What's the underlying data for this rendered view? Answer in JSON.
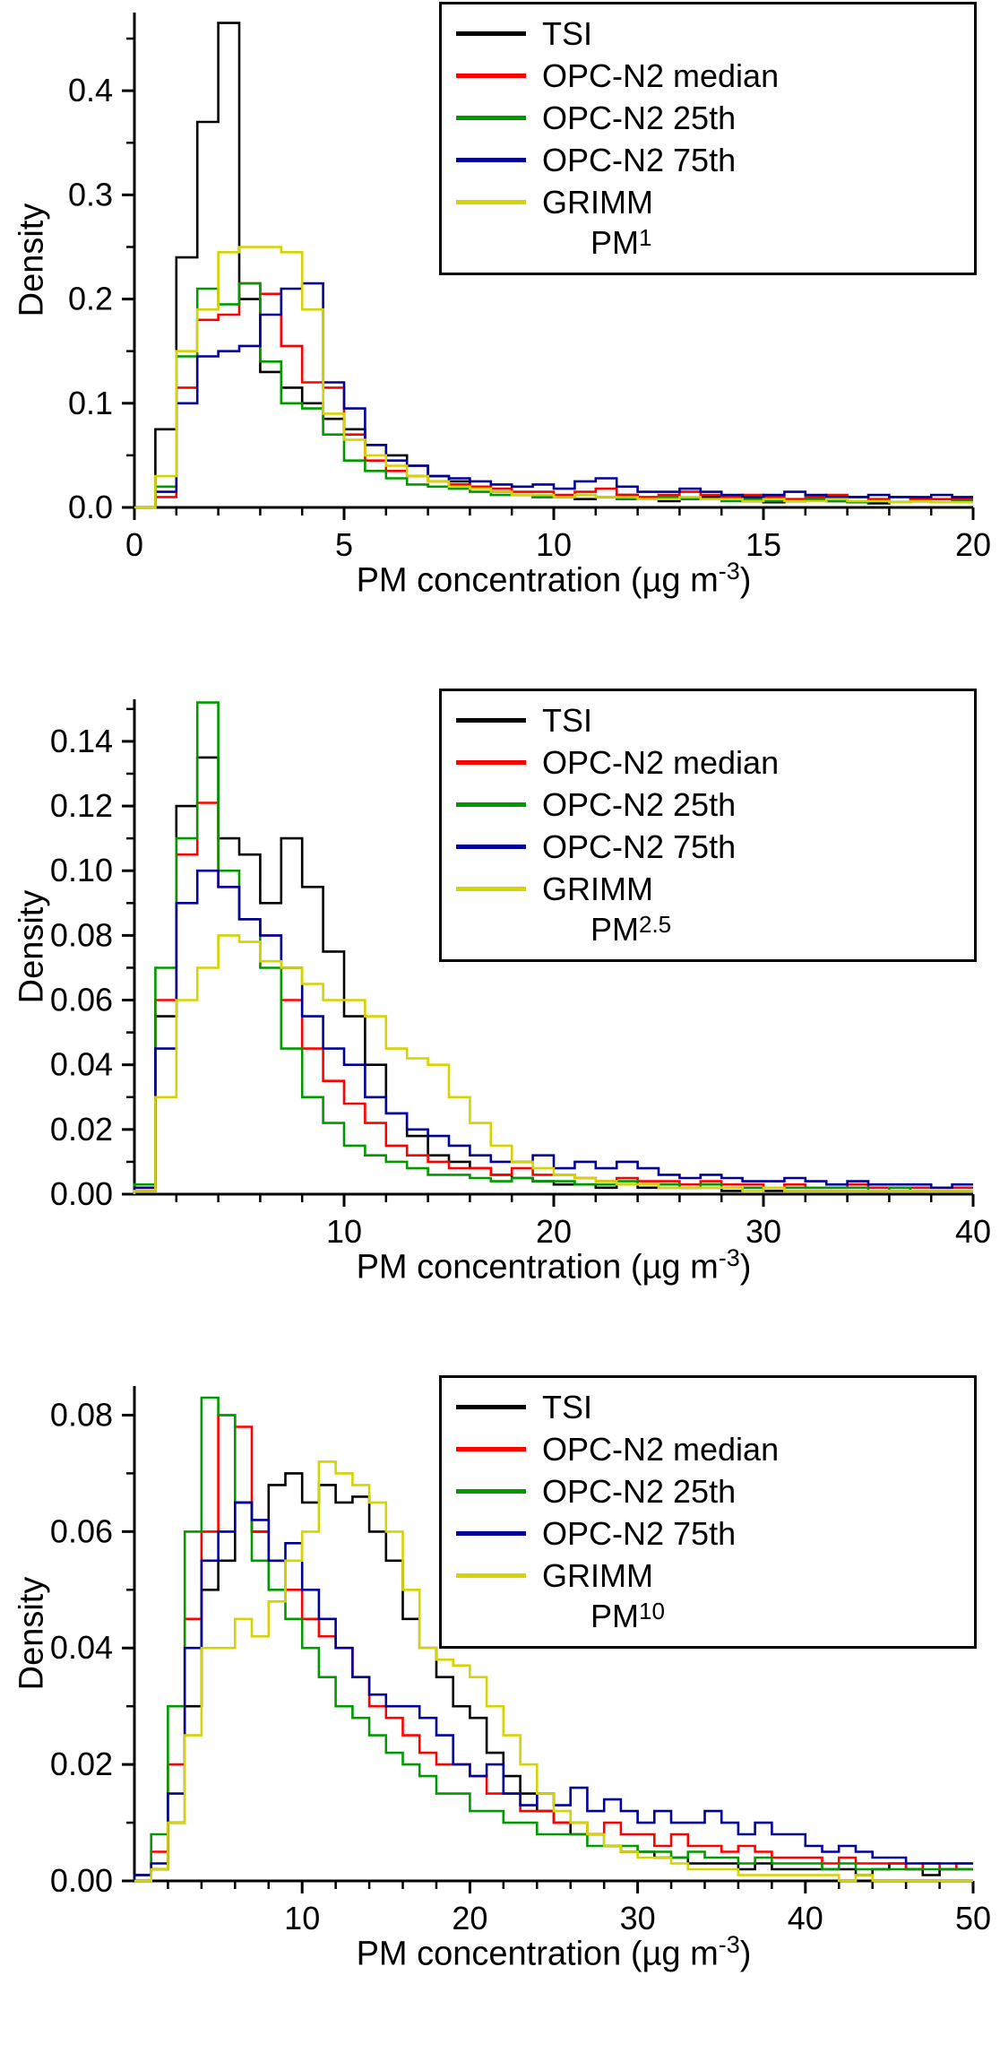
{
  "page": {
    "background": "#ffffff"
  },
  "chart_data": [
    {
      "type": "histogram-step",
      "ylabel": "Density",
      "xlabel": "PM concentration (µg m⁻³)",
      "xlabel_parts": {
        "main": "PM concentration (µg m",
        "sup": "-3",
        "end": ")"
      },
      "legend": {
        "position": "top-right",
        "size_label": {
          "main": "PM",
          "sub": "1"
        }
      },
      "xlim": [
        0,
        20
      ],
      "ylim": [
        0,
        0.475
      ],
      "xticks": [
        0,
        5,
        10,
        15,
        20
      ],
      "xtick_labels": [
        "0",
        "5",
        "10",
        "15",
        "20"
      ],
      "xminor_step": 1,
      "yticks": [
        0.0,
        0.1,
        0.2,
        0.3,
        0.4
      ],
      "ytick_labels": [
        "0.0",
        "0.1",
        "0.2",
        "0.3",
        "0.4"
      ],
      "yminor_step": 0.05,
      "bin_start": 0,
      "bin_width": 0.5,
      "series": [
        {
          "name": "TSI",
          "color": "#000000",
          "values": [
            0,
            0.075,
            0.24,
            0.37,
            0.465,
            0.2,
            0.13,
            0.115,
            0.1,
            0.085,
            0.075,
            0.06,
            0.05,
            0.04,
            0.03,
            0.025,
            0.02,
            0.015,
            0.012,
            0.01,
            0.01,
            0.008,
            0.01,
            0.012,
            0.008,
            0.006,
            0.008,
            0.01,
            0.008,
            0.006,
            0.005,
            0.006,
            0.008,
            0.006,
            0.005,
            0.004,
            0.005,
            0.006,
            0.005,
            0.005
          ]
        },
        {
          "name": "OPC-N2 median",
          "color": "#ff0000",
          "values": [
            0,
            0.01,
            0.115,
            0.18,
            0.185,
            0.215,
            0.205,
            0.155,
            0.12,
            0.115,
            0.07,
            0.045,
            0.035,
            0.03,
            0.025,
            0.022,
            0.02,
            0.018,
            0.015,
            0.015,
            0.012,
            0.015,
            0.018,
            0.012,
            0.01,
            0.012,
            0.015,
            0.012,
            0.01,
            0.012,
            0.01,
            0.008,
            0.01,
            0.012,
            0.01,
            0.008,
            0.01,
            0.008,
            0.008,
            0.008
          ]
        },
        {
          "name": "OPC-N2 25th",
          "color": "#009900",
          "values": [
            0,
            0.02,
            0.145,
            0.21,
            0.195,
            0.215,
            0.14,
            0.1,
            0.095,
            0.07,
            0.045,
            0.035,
            0.028,
            0.022,
            0.02,
            0.018,
            0.015,
            0.012,
            0.012,
            0.01,
            0.01,
            0.012,
            0.01,
            0.008,
            0.008,
            0.01,
            0.008,
            0.008,
            0.006,
            0.008,
            0.006,
            0.006,
            0.008,
            0.006,
            0.005,
            0.006,
            0.005,
            0.006,
            0.005,
            0.006
          ]
        },
        {
          "name": "OPC-N2 75th",
          "color": "#000099",
          "values": [
            0,
            0.015,
            0.1,
            0.145,
            0.15,
            0.155,
            0.185,
            0.21,
            0.215,
            0.12,
            0.095,
            0.06,
            0.045,
            0.04,
            0.03,
            0.028,
            0.025,
            0.022,
            0.02,
            0.022,
            0.018,
            0.025,
            0.028,
            0.02,
            0.015,
            0.015,
            0.018,
            0.015,
            0.012,
            0.01,
            0.012,
            0.015,
            0.012,
            0.01,
            0.01,
            0.012,
            0.01,
            0.01,
            0.012,
            0.01
          ]
        },
        {
          "name": "GRIMM",
          "color": "#d4d400",
          "values": [
            0,
            0.03,
            0.15,
            0.19,
            0.245,
            0.25,
            0.25,
            0.245,
            0.19,
            0.09,
            0.065,
            0.05,
            0.04,
            0.03,
            0.025,
            0.02,
            0.018,
            0.015,
            0.012,
            0.012,
            0.01,
            0.012,
            0.01,
            0.01,
            0.008,
            0.008,
            0.01,
            0.008,
            0.008,
            0.006,
            0.008,
            0.006,
            0.006,
            0.008,
            0.006,
            0.006,
            0.005,
            0.006,
            0.005,
            0.005
          ]
        }
      ]
    },
    {
      "type": "histogram-step",
      "ylabel": "Density",
      "xlabel": "PM concentration (µg m⁻³)",
      "xlabel_parts": {
        "main": "PM concentration (µg m",
        "sup": "-3",
        "end": ")"
      },
      "legend": {
        "position": "top-right",
        "size_label": {
          "main": "PM",
          "sub": "2.5"
        }
      },
      "xlim": [
        0,
        40
      ],
      "ylim": [
        0,
        0.153
      ],
      "xticks": [
        10,
        20,
        30,
        40
      ],
      "xtick_labels": [
        "10",
        "20",
        "30",
        "40"
      ],
      "xminor_step": 2,
      "yticks": [
        0.0,
        0.02,
        0.04,
        0.06,
        0.08,
        0.1,
        0.12,
        0.14
      ],
      "ytick_labels": [
        "0.00",
        "0.02",
        "0.04",
        "0.06",
        "0.08",
        "0.10",
        "0.12",
        "0.14"
      ],
      "yminor_step": 0.01,
      "bin_start": 0,
      "bin_width": 1,
      "series": [
        {
          "name": "TSI",
          "color": "#000000",
          "values": [
            0.001,
            0.055,
            0.12,
            0.135,
            0.11,
            0.105,
            0.09,
            0.11,
            0.095,
            0.075,
            0.055,
            0.04,
            0.025,
            0.018,
            0.012,
            0.01,
            0.008,
            0.006,
            0.005,
            0.004,
            0.003,
            0.003,
            0.002,
            0.003,
            0.002,
            0.002,
            0.002,
            0.002,
            0.001,
            0.002,
            0.001,
            0.001,
            0.001,
            0.001,
            0.001,
            0.001,
            0.001,
            0.001,
            0.001,
            0.001
          ]
        },
        {
          "name": "OPC-N2 median",
          "color": "#ff0000",
          "values": [
            0.002,
            0.06,
            0.105,
            0.121,
            0.095,
            0.085,
            0.08,
            0.06,
            0.045,
            0.035,
            0.028,
            0.022,
            0.015,
            0.012,
            0.01,
            0.008,
            0.008,
            0.006,
            0.008,
            0.006,
            0.006,
            0.005,
            0.004,
            0.005,
            0.004,
            0.004,
            0.003,
            0.004,
            0.003,
            0.003,
            0.002,
            0.003,
            0.002,
            0.002,
            0.003,
            0.002,
            0.002,
            0.002,
            0.002,
            0.002
          ]
        },
        {
          "name": "OPC-N2 25th",
          "color": "#009900",
          "values": [
            0.003,
            0.07,
            0.11,
            0.152,
            0.1,
            0.085,
            0.07,
            0.045,
            0.03,
            0.022,
            0.015,
            0.012,
            0.01,
            0.008,
            0.006,
            0.006,
            0.005,
            0.004,
            0.005,
            0.004,
            0.004,
            0.003,
            0.003,
            0.004,
            0.003,
            0.003,
            0.002,
            0.003,
            0.002,
            0.002,
            0.002,
            0.002,
            0.002,
            0.002,
            0.002,
            0.001,
            0.002,
            0.001,
            0.001,
            0.001
          ]
        },
        {
          "name": "OPC-N2 75th",
          "color": "#000099",
          "values": [
            0.002,
            0.045,
            0.09,
            0.1,
            0.095,
            0.085,
            0.08,
            0.07,
            0.055,
            0.045,
            0.04,
            0.03,
            0.025,
            0.02,
            0.018,
            0.015,
            0.012,
            0.01,
            0.01,
            0.012,
            0.008,
            0.01,
            0.008,
            0.01,
            0.008,
            0.006,
            0.005,
            0.006,
            0.005,
            0.004,
            0.004,
            0.005,
            0.004,
            0.003,
            0.004,
            0.003,
            0.003,
            0.003,
            0.002,
            0.003
          ]
        },
        {
          "name": "GRIMM",
          "color": "#d4d400",
          "values": [
            0.001,
            0.03,
            0.06,
            0.07,
            0.08,
            0.078,
            0.072,
            0.07,
            0.065,
            0.06,
            0.06,
            0.055,
            0.045,
            0.042,
            0.04,
            0.03,
            0.022,
            0.015,
            0.01,
            0.008,
            0.006,
            0.005,
            0.004,
            0.003,
            0.003,
            0.002,
            0.002,
            0.002,
            0.002,
            0.001,
            0.002,
            0.001,
            0.001,
            0.001,
            0.001,
            0.001,
            0.001,
            0.001,
            0.001,
            0.001
          ]
        }
      ]
    },
    {
      "type": "histogram-step",
      "ylabel": "Density",
      "xlabel": "PM concentration (µg m⁻³)",
      "xlabel_parts": {
        "main": "PM concentration (µg m",
        "sup": "-3",
        "end": ")"
      },
      "legend": {
        "position": "top-right",
        "size_label": {
          "main": "PM",
          "sub": "10"
        }
      },
      "xlim": [
        0,
        50
      ],
      "ylim": [
        0,
        0.085
      ],
      "xticks": [
        10,
        20,
        30,
        40,
        50
      ],
      "xtick_labels": [
        "10",
        "20",
        "30",
        "40",
        "50"
      ],
      "xminor_step": 2,
      "yticks": [
        0.0,
        0.02,
        0.04,
        0.06,
        0.08
      ],
      "ytick_labels": [
        "0.00",
        "0.02",
        "0.04",
        "0.06",
        "0.08"
      ],
      "yminor_step": 0.01,
      "bin_start": 0,
      "bin_width": 1,
      "series": [
        {
          "name": "TSI",
          "color": "#000000",
          "values": [
            0.001,
            0.002,
            0.01,
            0.03,
            0.05,
            0.055,
            0.065,
            0.06,
            0.068,
            0.07,
            0.065,
            0.068,
            0.065,
            0.066,
            0.06,
            0.055,
            0.045,
            0.04,
            0.035,
            0.03,
            0.028,
            0.022,
            0.018,
            0.015,
            0.012,
            0.01,
            0.008,
            0.008,
            0.006,
            0.005,
            0.005,
            0.004,
            0.004,
            0.003,
            0.003,
            0.003,
            0.002,
            0.003,
            0.002,
            0.002,
            0.002,
            0.002,
            0.002,
            0.001,
            0.002,
            0.003,
            0.002,
            0.001,
            0.002,
            0.002
          ]
        },
        {
          "name": "OPC-N2 median",
          "color": "#ff0000",
          "values": [
            0.001,
            0.005,
            0.02,
            0.045,
            0.06,
            0.08,
            0.078,
            0.06,
            0.055,
            0.05,
            0.045,
            0.042,
            0.04,
            0.035,
            0.03,
            0.028,
            0.025,
            0.022,
            0.02,
            0.02,
            0.018,
            0.015,
            0.015,
            0.012,
            0.012,
            0.01,
            0.01,
            0.008,
            0.01,
            0.008,
            0.008,
            0.006,
            0.008,
            0.006,
            0.006,
            0.005,
            0.006,
            0.005,
            0.004,
            0.004,
            0.004,
            0.003,
            0.004,
            0.003,
            0.003,
            0.003,
            0.002,
            0.003,
            0.002,
            0.003
          ]
        },
        {
          "name": "OPC-N2 25th",
          "color": "#009900",
          "values": [
            0.001,
            0.008,
            0.03,
            0.06,
            0.083,
            0.08,
            0.065,
            0.055,
            0.05,
            0.045,
            0.04,
            0.035,
            0.03,
            0.028,
            0.025,
            0.022,
            0.02,
            0.018,
            0.015,
            0.015,
            0.012,
            0.012,
            0.01,
            0.01,
            0.008,
            0.008,
            0.008,
            0.006,
            0.006,
            0.006,
            0.005,
            0.005,
            0.004,
            0.005,
            0.004,
            0.004,
            0.003,
            0.004,
            0.003,
            0.003,
            0.003,
            0.002,
            0.003,
            0.002,
            0.002,
            0.002,
            0.002,
            0.002,
            0.002,
            0.002
          ]
        },
        {
          "name": "OPC-N2 75th",
          "color": "#000099",
          "values": [
            0.001,
            0.003,
            0.015,
            0.04,
            0.055,
            0.06,
            0.065,
            0.062,
            0.055,
            0.058,
            0.05,
            0.045,
            0.04,
            0.035,
            0.032,
            0.03,
            0.03,
            0.028,
            0.025,
            0.02,
            0.018,
            0.02,
            0.015,
            0.013,
            0.015,
            0.013,
            0.016,
            0.012,
            0.014,
            0.012,
            0.01,
            0.012,
            0.01,
            0.01,
            0.012,
            0.01,
            0.008,
            0.01,
            0.008,
            0.008,
            0.006,
            0.005,
            0.006,
            0.005,
            0.004,
            0.004,
            0.003,
            0.003,
            0.003,
            0.003
          ]
        },
        {
          "name": "GRIMM",
          "color": "#d4d400",
          "values": [
            0.0,
            0.002,
            0.01,
            0.025,
            0.04,
            0.04,
            0.045,
            0.042,
            0.048,
            0.055,
            0.06,
            0.072,
            0.07,
            0.068,
            0.065,
            0.06,
            0.05,
            0.04,
            0.038,
            0.037,
            0.035,
            0.03,
            0.025,
            0.02,
            0.015,
            0.012,
            0.01,
            0.008,
            0.006,
            0.005,
            0.004,
            0.004,
            0.003,
            0.002,
            0.002,
            0.002,
            0.001,
            0.001,
            0.001,
            0.001,
            0.001,
            0.001,
            0.0,
            0.001,
            0.0,
            0.0,
            0.0,
            0.0,
            0.0,
            0.0
          ]
        }
      ]
    }
  ]
}
